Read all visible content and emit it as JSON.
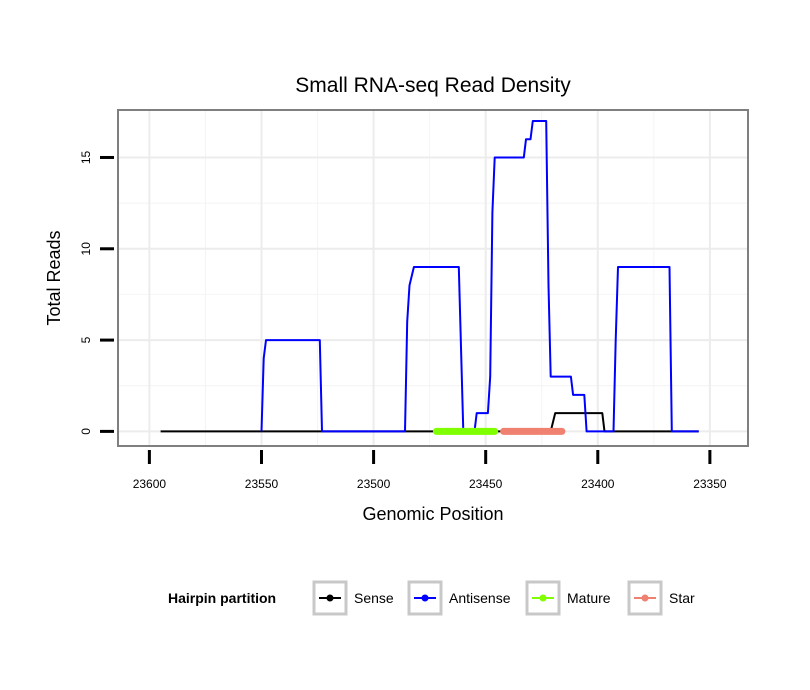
{
  "chart_data": {
    "type": "line",
    "title": "Small RNA-seq Read Density",
    "xlabel": "Genomic Position",
    "ylabel": "Total Reads",
    "x_reversed": true,
    "xlim": [
      23614,
      23333
    ],
    "ylim": [
      -0.8,
      17.6
    ],
    "xticks": [
      23600,
      23550,
      23500,
      23450,
      23400,
      23350
    ],
    "yticks": [
      0,
      5,
      10,
      15
    ],
    "grid": true,
    "series": [
      {
        "name": "Sense",
        "color": "#000000",
        "points": [
          [
            23595,
            0
          ],
          [
            23421,
            0
          ],
          [
            23419,
            1
          ],
          [
            23398,
            1
          ],
          [
            23397,
            0
          ],
          [
            23380,
            0
          ],
          [
            23368,
            0
          ],
          [
            23355,
            0
          ]
        ]
      },
      {
        "name": "Antisense",
        "color": "#0000ff",
        "points": [
          [
            23550,
            0
          ],
          [
            23549,
            4
          ],
          [
            23548,
            5
          ],
          [
            23524,
            5
          ],
          [
            23523,
            0
          ],
          [
            23486,
            0
          ],
          [
            23485,
            6
          ],
          [
            23484,
            8
          ],
          [
            23482,
            9
          ],
          [
            23462,
            9
          ],
          [
            23460,
            0
          ],
          [
            23455,
            0
          ],
          [
            23454,
            1
          ],
          [
            23449,
            1
          ],
          [
            23448,
            3
          ],
          [
            23447,
            12
          ],
          [
            23446,
            15
          ],
          [
            23433,
            15
          ],
          [
            23432,
            16
          ],
          [
            23430,
            16
          ],
          [
            23429,
            17
          ],
          [
            23423,
            17
          ],
          [
            23422,
            8
          ],
          [
            23421,
            3
          ],
          [
            23412,
            3
          ],
          [
            23411,
            2
          ],
          [
            23406,
            2
          ],
          [
            23405,
            0
          ],
          [
            23393,
            0
          ],
          [
            23392,
            5
          ],
          [
            23391,
            9
          ],
          [
            23368,
            9
          ],
          [
            23367,
            0
          ],
          [
            23355,
            0
          ]
        ]
      },
      {
        "name": "Mature",
        "color": "#7fff00",
        "points": [
          [
            23472,
            0
          ],
          [
            23446,
            0
          ]
        ]
      },
      {
        "name": "Star",
        "color": "#f08070",
        "points": [
          [
            23442,
            0
          ],
          [
            23416,
            0
          ]
        ]
      }
    ],
    "legend": {
      "title": "Hairpin partition",
      "position": "bottom",
      "items": [
        "Sense",
        "Antisense",
        "Mature",
        "Star"
      ]
    }
  }
}
